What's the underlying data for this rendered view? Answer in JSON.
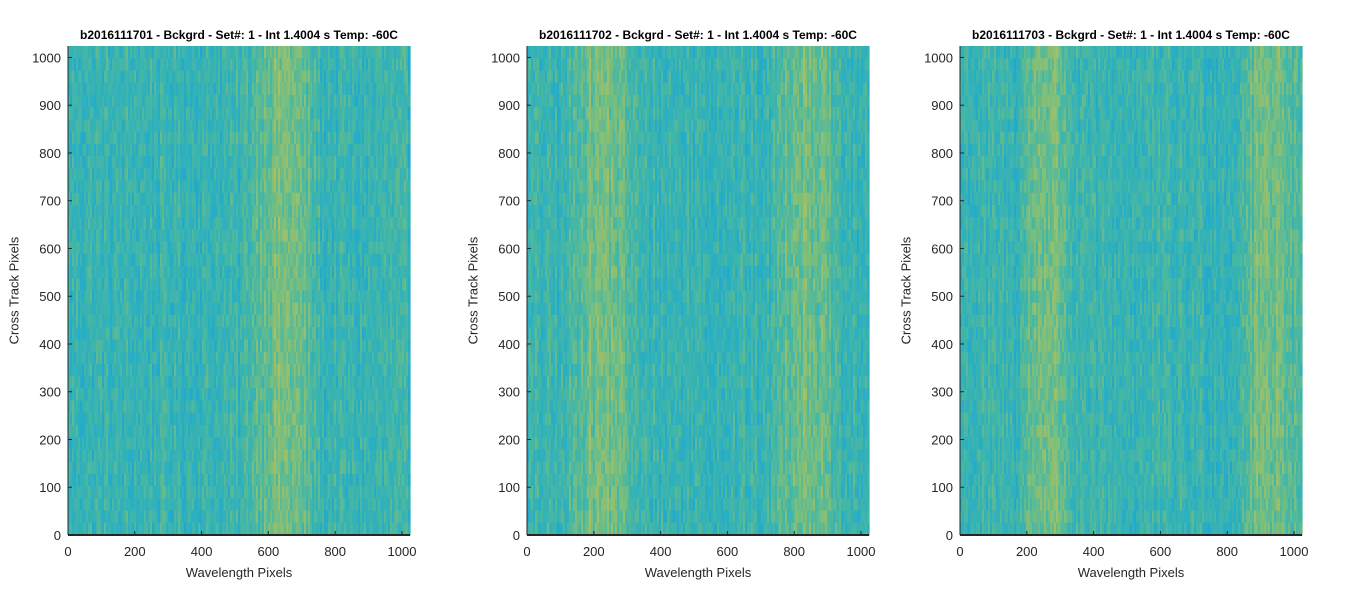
{
  "chart_data": [
    {
      "type": "heatmap",
      "title": "b2016111701 - Bckgrd - Set#: 1 - Int 1.4004 s Temp: -60C",
      "xlabel": "Wavelength Pixels",
      "ylabel": "Cross Track Pixels",
      "xlim": [
        0,
        1024
      ],
      "ylim": [
        0,
        1024
      ],
      "xticks": [
        0,
        200,
        400,
        600,
        800,
        1000
      ],
      "yticks": [
        0,
        100,
        200,
        300,
        400,
        500,
        600,
        700,
        800,
        900,
        1000
      ],
      "colormap": [
        "#1a9fd6",
        "#28aec4",
        "#46b7a4",
        "#7fbf7a",
        "#b4c05e"
      ],
      "bright_band_x": [
        [
          560,
          720
        ]
      ],
      "grid": false
    },
    {
      "type": "heatmap",
      "title": "b2016111702 - Bckgrd - Set#: 1 - Int 1.4004 s Temp: -60C",
      "xlabel": "Wavelength Pixels",
      "ylabel": "Cross Track Pixels",
      "xlim": [
        0,
        1024
      ],
      "ylim": [
        0,
        1024
      ],
      "xticks": [
        0,
        200,
        400,
        600,
        800,
        1000
      ],
      "yticks": [
        0,
        100,
        200,
        300,
        400,
        500,
        600,
        700,
        800,
        900,
        1000
      ],
      "colormap": [
        "#1a9fd6",
        "#28aec4",
        "#46b7a4",
        "#7fbf7a",
        "#b4c05e"
      ],
      "bright_band_x": [
        [
          150,
          300
        ],
        [
          760,
          900
        ]
      ],
      "grid": false
    },
    {
      "type": "heatmap",
      "title": "b2016111703 - Bckgrd - Set#: 1 - Int 1.4004 s Temp: -60C",
      "xlabel": "Wavelength Pixels",
      "ylabel": "Cross Track Pixels",
      "xlim": [
        0,
        1024
      ],
      "ylim": [
        0,
        1024
      ],
      "xticks": [
        0,
        200,
        400,
        600,
        800,
        1000
      ],
      "yticks": [
        0,
        100,
        200,
        300,
        400,
        500,
        600,
        700,
        800,
        900,
        1000
      ],
      "colormap": [
        "#1a9fd6",
        "#28aec4",
        "#46b7a4",
        "#7fbf7a",
        "#b4c05e"
      ],
      "bright_band_x": [
        [
          200,
          320
        ],
        [
          860,
          1000
        ]
      ],
      "grid": false
    }
  ]
}
